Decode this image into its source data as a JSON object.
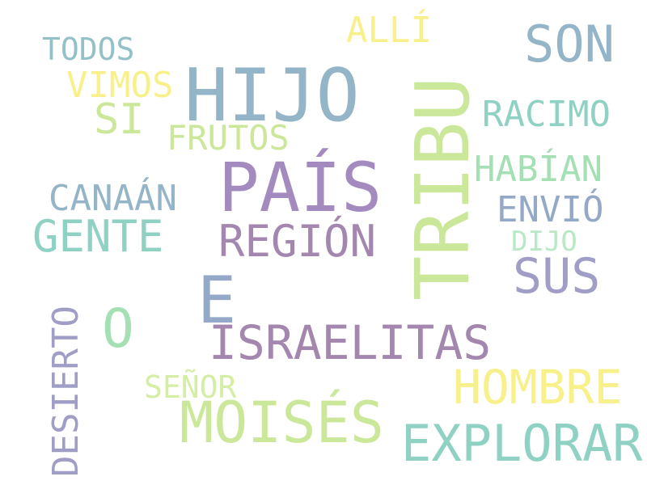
{
  "words": {
    "hijo": {
      "text": "HIJO",
      "color": "#94b4c8"
    },
    "tribu": {
      "text": "TRIBU",
      "color": "#cbe89a"
    },
    "pais": {
      "text": "PAÍS",
      "color": "#a38bbf"
    },
    "israelitas": {
      "text": "ISRAELITAS",
      "color": "#a487ae"
    },
    "moises": {
      "text": "MOISÉS",
      "color": "#cbe89a"
    },
    "explorar": {
      "text": "EXPLORAR",
      "color": "#8fd1c3"
    },
    "son": {
      "text": "SON",
      "color": "#94b4c8"
    },
    "e": {
      "text": "E",
      "color": "#94a8c8"
    },
    "region": {
      "text": "REGIÓN",
      "color": "#a487ae"
    },
    "hombre": {
      "text": "HOMBRE",
      "color": "#f8f08a"
    },
    "sus": {
      "text": "SUS",
      "color": "#a09ec6"
    },
    "gente": {
      "text": "GENTE",
      "color": "#8fd1c3"
    },
    "desierto": {
      "text": "DESIERTO",
      "color": "#a09ec6"
    },
    "o": {
      "text": "O",
      "color": "#a5dfb4"
    },
    "vimos": {
      "text": "VIMOS",
      "color": "#f8f08a"
    },
    "si": {
      "text": "SI",
      "color": "#cbe89a"
    },
    "racimo": {
      "text": "RACIMO",
      "color": "#8fd1c3"
    },
    "habian": {
      "text": "HABÍAN",
      "color": "#a5dfb4"
    },
    "canaan": {
      "text": "CANAÁN",
      "color": "#94b4c8"
    },
    "frutos": {
      "text": "FRUTOS",
      "color": "#cbe89a"
    },
    "envio": {
      "text": "ENVIÓ",
      "color": "#94a8c8"
    },
    "todos": {
      "text": "TODOS",
      "color": "#94c0c8"
    },
    "alli": {
      "text": "ALLÍ",
      "color": "#f8f08a"
    },
    "senor": {
      "text": "SEÑOR",
      "color": "#d4eea6"
    },
    "dijo": {
      "text": "DIJO",
      "color": "#b8e8c4"
    }
  }
}
